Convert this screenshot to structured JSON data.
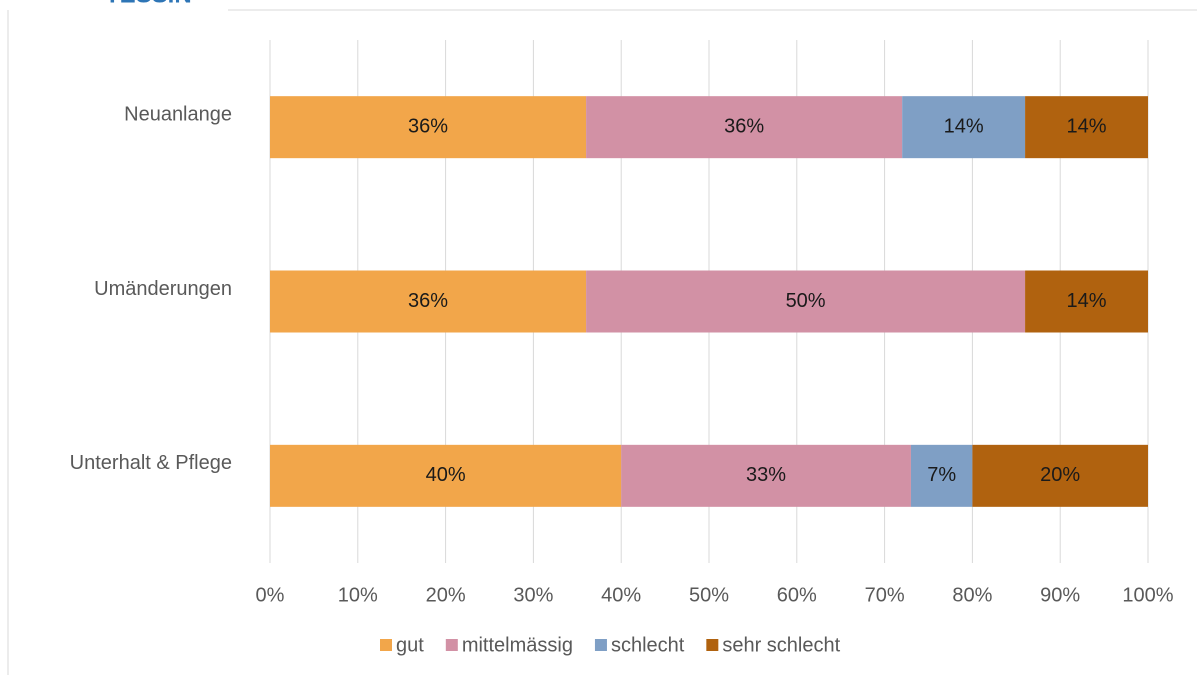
{
  "chart_data": {
    "type": "stacked-bar-horizontal",
    "title": "TESSIN",
    "categories": [
      "Neuanlange",
      "Umänderungen",
      "Unterhalt & Pflege"
    ],
    "series": [
      {
        "name": "gut",
        "color": "#f2a64a",
        "values": [
          36,
          36,
          40
        ],
        "value_labels": [
          "36%",
          "36%",
          "40%"
        ]
      },
      {
        "name": "mittelmässig",
        "color": "#d291a5",
        "values": [
          36,
          50,
          33
        ],
        "value_labels": [
          "36%",
          "50%",
          "33%"
        ]
      },
      {
        "name": "schlecht",
        "color": "#7f9fc5",
        "values": [
          14,
          null,
          7
        ],
        "value_labels": [
          "14%",
          null,
          "7%"
        ]
      },
      {
        "name": "sehr schlecht",
        "color": "#b0620f",
        "values": [
          14,
          14,
          20
        ],
        "value_labels": [
          "14%",
          "14%",
          "20%"
        ]
      }
    ],
    "xlim": [
      0,
      100
    ],
    "xticks": [
      {
        "value": 0,
        "label": "0%"
      },
      {
        "value": 10,
        "label": "10%"
      },
      {
        "value": 20,
        "label": "20%"
      },
      {
        "value": 30,
        "label": "30%"
      },
      {
        "value": 40,
        "label": "40%"
      },
      {
        "value": 50,
        "label": "50%"
      },
      {
        "value": 60,
        "label": "60%"
      },
      {
        "value": 70,
        "label": "70%"
      },
      {
        "value": 80,
        "label": "80%"
      },
      {
        "value": 90,
        "label": "90%"
      },
      {
        "value": 100,
        "label": "100%"
      }
    ],
    "grid": true,
    "legend": "bottom"
  }
}
